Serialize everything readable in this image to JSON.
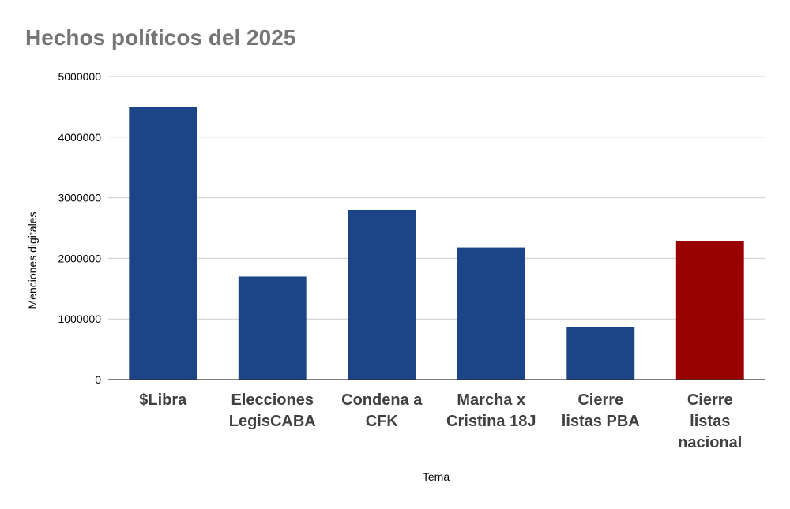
{
  "chart_data": {
    "type": "bar",
    "title": "Hechos políticos del 2025",
    "xlabel": "Tema",
    "ylabel": "Menciones digitales",
    "categories": [
      [
        "$Libra"
      ],
      [
        "Elecciones",
        "LegisCABA"
      ],
      [
        "Condena a",
        "CFK"
      ],
      [
        "Marcha x",
        "Cristina 18J"
      ],
      [
        "Cierre",
        "listas PBA"
      ],
      [
        "Cierre",
        "listas",
        "nacional"
      ]
    ],
    "values": [
      4500000,
      1700000,
      2800000,
      2180000,
      860000,
      2290000
    ],
    "bar_colors": [
      "#1c4587",
      "#1c4587",
      "#1c4587",
      "#1c4587",
      "#1c4587",
      "#990000"
    ],
    "ylim": [
      0,
      5000000
    ],
    "yticks": [
      "0",
      "1000000",
      "2000000",
      "3000000",
      "4000000",
      "5000000"
    ],
    "grid": true,
    "legend": "none"
  }
}
